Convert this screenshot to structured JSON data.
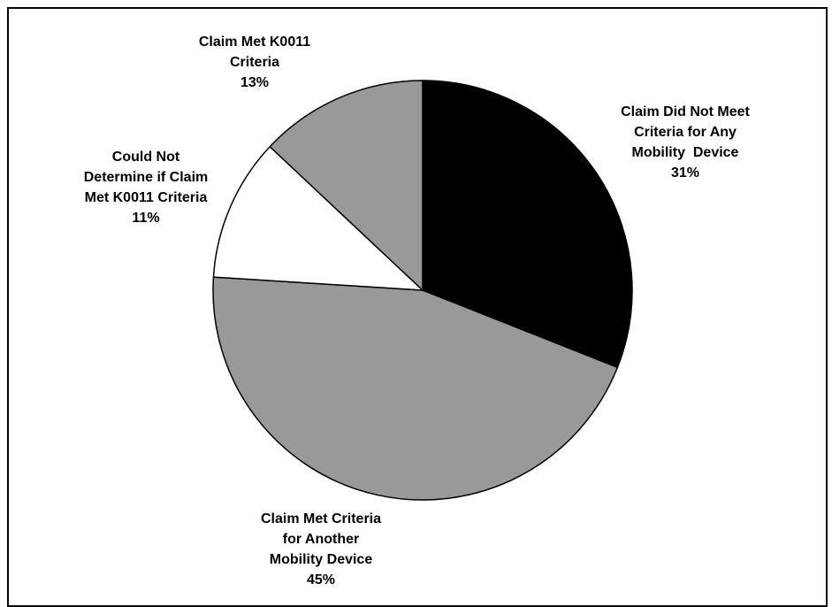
{
  "chart_data": {
    "type": "pie",
    "title": "",
    "start": "12 o'clock, clockwise",
    "slices": [
      {
        "label_lines": [
          "Claim Did Not Meet",
          "Criteria for Any",
          "Mobility  Device"
        ],
        "pct_text": "31%",
        "value": 31,
        "color": "#000000"
      },
      {
        "label_lines": [
          "Claim Met Criteria",
          "for Another",
          "Mobility Device"
        ],
        "pct_text": "45%",
        "value": 45,
        "color": "#999999"
      },
      {
        "label_lines": [
          "Could Not",
          "Determine if Claim",
          "Met K0011 Criteria"
        ],
        "pct_text": "11%",
        "value": 11,
        "color": "#ffffff"
      },
      {
        "label_lines": [
          "Claim Met K0011",
          "Criteria"
        ],
        "pct_text": "13%",
        "value": 13,
        "color": "#999999"
      }
    ]
  }
}
